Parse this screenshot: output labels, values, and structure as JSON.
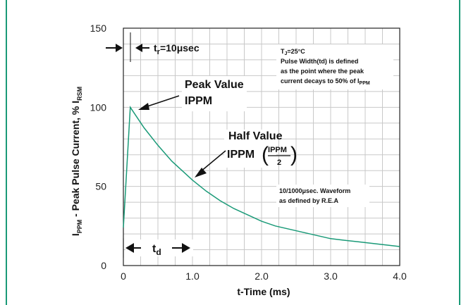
{
  "chart_data": {
    "type": "line",
    "xlabel": "t-Time (ms)",
    "ylabel_main": "I",
    "ylabel_sub": "PPM",
    "ylabel_rest": " - Peak Pulse Current, % I",
    "ylabel_sub2": "RSM",
    "xlim": [
      0,
      4.0
    ],
    "ylim": [
      0,
      150
    ],
    "x_ticks": [
      {
        "value": 0,
        "label": "0"
      },
      {
        "value": 1.0,
        "label": "1.0"
      },
      {
        "value": 2.0,
        "label": "2.0"
      },
      {
        "value": 3.0,
        "label": "3.0"
      },
      {
        "value": 4.0,
        "label": "4.0"
      }
    ],
    "y_ticks": [
      {
        "value": 0,
        "label": "0"
      },
      {
        "value": 50,
        "label": "50"
      },
      {
        "value": 100,
        "label": "100"
      },
      {
        "value": 150,
        "label": "150"
      }
    ],
    "grid": true,
    "series": [
      {
        "color": "#1a9a78",
        "x": [
          0,
          0.1,
          0.3,
          0.5,
          0.7,
          0.9,
          1.0,
          1.2,
          1.4,
          1.6,
          1.8,
          2.0,
          2.2,
          2.4,
          2.6,
          2.8,
          3.0,
          3.2,
          3.4,
          3.6,
          3.8,
          4.0
        ],
        "y": [
          24,
          100,
          87,
          76,
          66,
          58,
          54,
          47,
          41,
          36,
          32,
          28,
          25,
          23,
          21,
          19,
          17,
          16,
          15,
          14,
          13,
          12
        ]
      }
    ],
    "annotations": {
      "tr_main": "t",
      "tr_sub": "r",
      "tr_rest": "=10μsec",
      "peak_line1": "Peak Value",
      "peak_line2_main": "I",
      "peak_line2_sub": "PPM",
      "half_line1": "Half Value",
      "half_main": "I",
      "half_sub": "PPM",
      "frac_num_main": "I",
      "frac_num_sub": "PPM",
      "frac_den": "2",
      "td_main": "t",
      "td_sub": "d",
      "cond_main": "T",
      "cond_sub": "J",
      "cond_rest": "=25°C",
      "note1": "Pulse Width(td) is defined",
      "note2": "as the point where the peak",
      "note3_main": "current decays to 50% of I",
      "note3_sub": "PPM",
      "wave1": "10/1000μsec. Waveform",
      "wave2": "as defined by R.E.A"
    }
  }
}
